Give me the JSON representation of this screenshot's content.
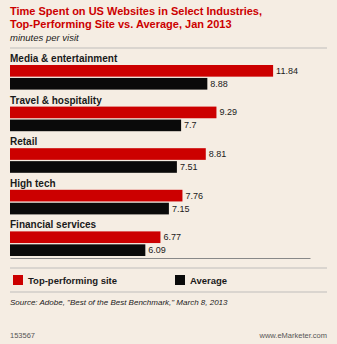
{
  "chart_data": {
    "type": "bar",
    "orientation": "horizontal",
    "title": [
      "Time Spent on US Websites in Select Industries,",
      "Top-Performing Site vs. Average, Jan 2013"
    ],
    "subtitle": "minutes per visit",
    "categories": [
      "Media & entertainment",
      "Travel & hospitality",
      "Retail",
      "High tech",
      "Financial services"
    ],
    "series": [
      {
        "name": "Top-performing site",
        "color": "#cc0000",
        "values": [
          11.84,
          9.29,
          8.81,
          7.76,
          6.77
        ]
      },
      {
        "name": "Average",
        "color": "#0a0a0a",
        "values": [
          8.88,
          7.7,
          7.51,
          7.15,
          6.09
        ]
      }
    ],
    "xlim": [
      0,
      13.5
    ],
    "data_labels": true,
    "tick_labels": false,
    "grid": false,
    "legend": "bottom",
    "annotations": [
      "Source: Adobe, \"Best of the Best Benchmark,\" March 8, 2013",
      "153567",
      "www.eMarketer.com"
    ]
  }
}
